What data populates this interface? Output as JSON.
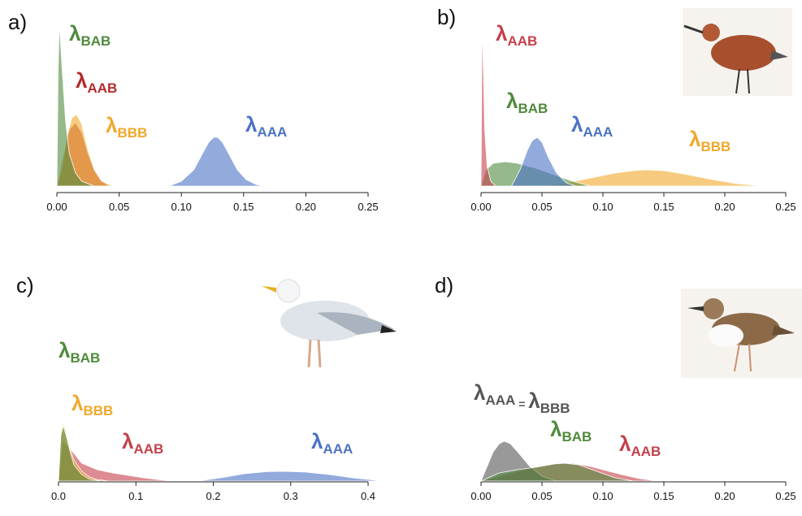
{
  "chart_data": [
    {
      "type": "density",
      "title": "a)",
      "xlim": [
        0,
        0.25
      ],
      "xticks": [
        {
          "value": 0,
          "label": "0.00"
        },
        0.05,
        {
          "value": 0.1,
          "label": "0.10"
        },
        0.15,
        {
          "value": 0.2,
          "label": "0.20"
        },
        0.25
      ],
      "ylim": [
        0,
        1
      ],
      "series": [
        {
          "name": "λAAA",
          "color": "#4a72c4",
          "x": [
            0.09,
            0.1,
            0.11,
            0.117,
            0.122,
            0.126,
            0.129,
            0.133,
            0.138,
            0.145,
            0.152,
            0.16,
            0.166
          ],
          "values": [
            0,
            0.03,
            0.1,
            0.2,
            0.27,
            0.3,
            0.3,
            0.27,
            0.2,
            0.1,
            0.04,
            0.01,
            0
          ]
        },
        {
          "name": "λAAB",
          "color": "#b52a2a",
          "x": [
            0,
            0.005,
            0.01,
            0.015,
            0.02,
            0.025,
            0.03,
            0.035,
            0.042
          ],
          "values": [
            0,
            0.2,
            0.35,
            0.39,
            0.33,
            0.2,
            0.1,
            0.04,
            0
          ]
        },
        {
          "name": "λBBB",
          "color": "#f0a82a",
          "x": [
            0,
            0.004,
            0.008,
            0.012,
            0.016,
            0.02,
            0.025,
            0.03,
            0.036,
            0.045
          ],
          "values": [
            0,
            0.12,
            0.3,
            0.42,
            0.44,
            0.38,
            0.22,
            0.1,
            0.03,
            0
          ]
        },
        {
          "name": "λBAB",
          "color": "#4f8a3c",
          "x": [
            0,
            0.001,
            0.002,
            0.004,
            0.007,
            0.01,
            0.015,
            0.02,
            0.03
          ],
          "values": [
            0,
            0.7,
            1.0,
            0.75,
            0.4,
            0.2,
            0.08,
            0.03,
            0
          ]
        }
      ]
    },
    {
      "type": "density",
      "title": "b)",
      "xlim": [
        0,
        0.25
      ],
      "xticks": [
        {
          "value": 0,
          "label": "0.00"
        },
        0.05,
        {
          "value": 0.1,
          "label": "0.10"
        },
        0.15,
        {
          "value": 0.2,
          "label": "0.20"
        },
        0.25
      ],
      "ylim": [
        0,
        1
      ],
      "series": [
        {
          "name": "λBBB",
          "color": "#f0a82a",
          "x": [
            0.05,
            0.07,
            0.09,
            0.11,
            0.125,
            0.135,
            0.15,
            0.17,
            0.19,
            0.21,
            0.232
          ],
          "values": [
            0,
            0.02,
            0.05,
            0.08,
            0.095,
            0.1,
            0.095,
            0.07,
            0.04,
            0.015,
            0
          ]
        },
        {
          "name": "λBAB",
          "color": "#4f8a3c",
          "x": [
            0,
            0.004,
            0.01,
            0.02,
            0.03,
            0.045,
            0.06,
            0.075,
            0.09
          ],
          "values": [
            0,
            0.1,
            0.14,
            0.15,
            0.14,
            0.11,
            0.07,
            0.03,
            0
          ]
        },
        {
          "name": "λAAA",
          "color": "#4a72c4",
          "x": [
            0.025,
            0.032,
            0.038,
            0.042,
            0.046,
            0.05,
            0.055,
            0.062,
            0.07,
            0.078
          ],
          "values": [
            0,
            0.1,
            0.22,
            0.28,
            0.3,
            0.27,
            0.18,
            0.08,
            0.02,
            0
          ]
        },
        {
          "name": "λAAB",
          "color": "#c4404a",
          "x": [
            0,
            0.0005,
            0.001,
            0.002,
            0.003,
            0.005,
            0.008,
            0.012
          ],
          "values": [
            0,
            0.6,
            1.0,
            0.7,
            0.35,
            0.12,
            0.03,
            0
          ]
        }
      ]
    },
    {
      "type": "density",
      "title": "c)",
      "xlim": [
        0,
        0.4
      ],
      "xticks": [
        {
          "value": 0,
          "label": "0.0"
        },
        0.1,
        0.2,
        0.3,
        0.4
      ],
      "ylim": [
        0,
        1
      ],
      "series": [
        {
          "name": "λAAA",
          "color": "#4a72c4",
          "x": [
            0.18,
            0.21,
            0.24,
            0.27,
            0.29,
            0.32,
            0.35,
            0.38,
            0.42
          ],
          "values": [
            0,
            0.02,
            0.045,
            0.058,
            0.06,
            0.055,
            0.04,
            0.02,
            0
          ]
        },
        {
          "name": "λAAB",
          "color": "#c4404a",
          "x": [
            0,
            0.005,
            0.015,
            0.03,
            0.05,
            0.07,
            0.09,
            0.11,
            0.13,
            0.15
          ],
          "values": [
            0,
            0.25,
            0.2,
            0.11,
            0.07,
            0.05,
            0.035,
            0.02,
            0.008,
            0
          ]
        },
        {
          "name": "λBBB",
          "color": "#f0a82a",
          "x": [
            0,
            0.003,
            0.006,
            0.01,
            0.015,
            0.02,
            0.03,
            0.04,
            0.05,
            0.065
          ],
          "values": [
            0,
            0.3,
            0.36,
            0.3,
            0.2,
            0.13,
            0.06,
            0.025,
            0.01,
            0
          ]
        },
        {
          "name": "λBAB",
          "color": "#4f8a3c",
          "x": [
            0,
            0.003,
            0.006,
            0.01,
            0.015,
            0.02,
            0.03,
            0.04,
            0.055
          ],
          "values": [
            0,
            0.28,
            0.34,
            0.28,
            0.18,
            0.1,
            0.04,
            0.012,
            0
          ]
        }
      ]
    },
    {
      "type": "density",
      "title": "d)",
      "xlim": [
        0,
        0.25
      ],
      "xticks": [
        {
          "value": 0,
          "label": "0.00"
        },
        0.05,
        {
          "value": 0.1,
          "label": "0.10"
        },
        0.15,
        {
          "value": 0.2,
          "label": "0.20"
        },
        0.25
      ],
      "ylim": [
        0,
        1
      ],
      "series": [
        {
          "name": "λAAB",
          "color": "#c4404a",
          "x": [
            0,
            0.02,
            0.04,
            0.06,
            0.075,
            0.09,
            0.11,
            0.13,
            0.145
          ],
          "values": [
            0,
            0.04,
            0.08,
            0.105,
            0.11,
            0.09,
            0.05,
            0.015,
            0
          ]
        },
        {
          "name": "λAAA = λBBB",
          "color": "#555555",
          "x": [
            0,
            0.005,
            0.01,
            0.015,
            0.019,
            0.024,
            0.03,
            0.04,
            0.05,
            0.062
          ],
          "values": [
            0,
            0.09,
            0.18,
            0.23,
            0.245,
            0.23,
            0.18,
            0.09,
            0.03,
            0
          ]
        },
        {
          "name": "λBAB",
          "color": "#4f8a3c",
          "x": [
            0,
            0.015,
            0.03,
            0.045,
            0.06,
            0.068,
            0.08,
            0.095,
            0.11,
            0.125
          ],
          "values": [
            0,
            0.05,
            0.07,
            0.085,
            0.105,
            0.11,
            0.1,
            0.06,
            0.02,
            0
          ]
        }
      ]
    }
  ]
}
